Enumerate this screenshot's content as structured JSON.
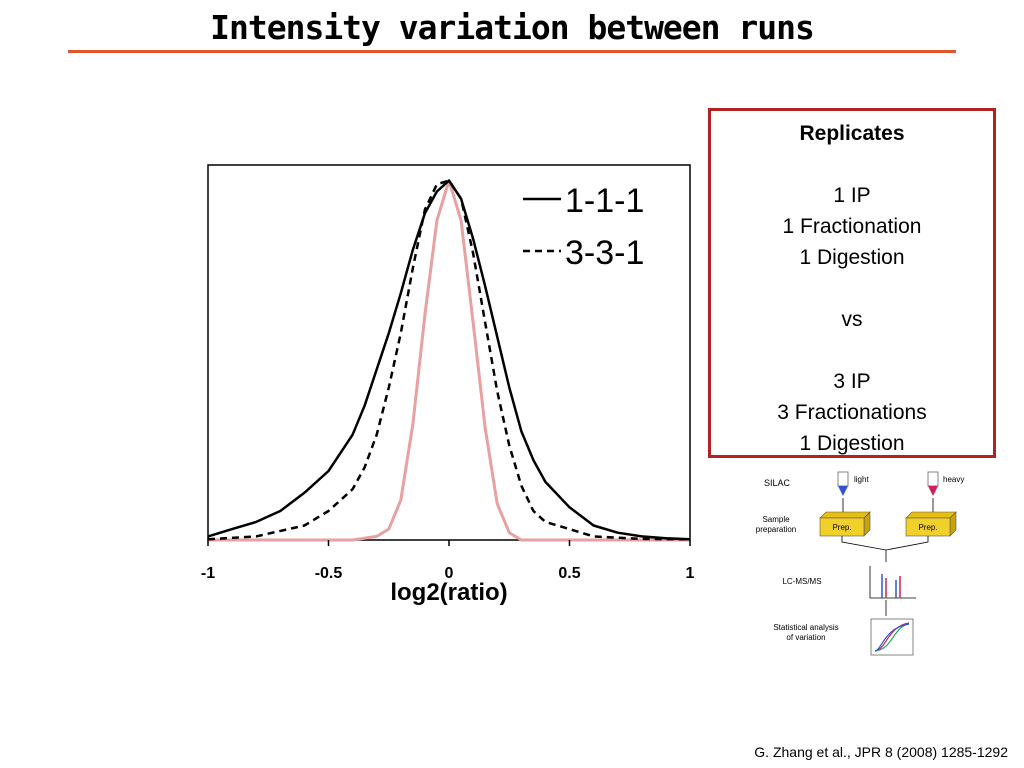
{
  "slide": {
    "title": "Intensity variation between runs",
    "citation": "G. Zhang et al., JPR 8 (2008) 1285-1292",
    "accent_color": "#e0542a"
  },
  "replicates": {
    "heading": "Replicates",
    "lines_a": [
      "1 IP",
      "1 Fractionation",
      "1 Digestion"
    ],
    "vs": "vs",
    "lines_b": [
      "3 IP",
      "3 Fractionations",
      "1 Digestion"
    ],
    "border_color": "#b22222"
  },
  "chart_data": {
    "type": "line",
    "xlabel": "log2(ratio)",
    "ylabel": "",
    "xlim": [
      -1,
      1
    ],
    "ylim": [
      0,
      1
    ],
    "x_ticks": [
      "-1",
      "-0.5",
      "0",
      "0.5",
      "1"
    ],
    "grid": false,
    "legend_position": "top-right",
    "series": [
      {
        "name": "1-1-1",
        "style": "solid",
        "color": "#000000",
        "x": [
          -1,
          -0.9,
          -0.8,
          -0.7,
          -0.6,
          -0.5,
          -0.4,
          -0.35,
          -0.3,
          -0.25,
          -0.2,
          -0.15,
          -0.1,
          -0.05,
          0,
          0.05,
          0.1,
          0.15,
          0.2,
          0.25,
          0.3,
          0.35,
          0.4,
          0.5,
          0.6,
          0.7,
          0.8,
          0.9,
          1
        ],
        "y": [
          0.01,
          0.03,
          0.05,
          0.08,
          0.13,
          0.19,
          0.29,
          0.37,
          0.47,
          0.57,
          0.68,
          0.8,
          0.9,
          0.96,
          0.99,
          0.94,
          0.83,
          0.7,
          0.56,
          0.42,
          0.3,
          0.22,
          0.16,
          0.09,
          0.04,
          0.02,
          0.01,
          0.005,
          0.002
        ]
      },
      {
        "name": "3-3-1",
        "style": "dashed",
        "color": "#000000",
        "x": [
          -1,
          -0.8,
          -0.6,
          -0.5,
          -0.4,
          -0.35,
          -0.3,
          -0.25,
          -0.2,
          -0.15,
          -0.1,
          -0.05,
          0,
          0.05,
          0.1,
          0.15,
          0.2,
          0.25,
          0.3,
          0.35,
          0.4,
          0.5,
          0.6,
          0.8,
          1
        ],
        "y": [
          0.002,
          0.01,
          0.04,
          0.08,
          0.14,
          0.2,
          0.29,
          0.42,
          0.57,
          0.75,
          0.91,
          0.98,
          0.99,
          0.94,
          0.79,
          0.6,
          0.41,
          0.26,
          0.15,
          0.08,
          0.05,
          0.03,
          0.01,
          0.003,
          0.002
        ]
      },
      {
        "style": "solid",
        "color": "#e8a0a0",
        "x": [
          -1,
          -0.4,
          -0.3,
          -0.25,
          -0.2,
          -0.15,
          -0.1,
          -0.05,
          0,
          0.05,
          0.1,
          0.15,
          0.2,
          0.25,
          0.3,
          1
        ],
        "y": [
          0,
          0,
          0.01,
          0.03,
          0.11,
          0.32,
          0.62,
          0.88,
          0.99,
          0.88,
          0.6,
          0.31,
          0.1,
          0.02,
          0,
          0
        ]
      }
    ]
  },
  "schematic": {
    "silac_label": "SILAC",
    "light_label": "light",
    "heavy_label": "heavy",
    "sample_prep_label": [
      "Sample",
      "preparation"
    ],
    "prep_label": "Prep.",
    "lcms_label": "LC-MS/MS",
    "stats_label": [
      "Statistical analysis",
      "of variation"
    ],
    "prep_box_color": "#f2d02a",
    "light_tube_color": "#3355cc",
    "heavy_tube_color": "#cc2255"
  }
}
